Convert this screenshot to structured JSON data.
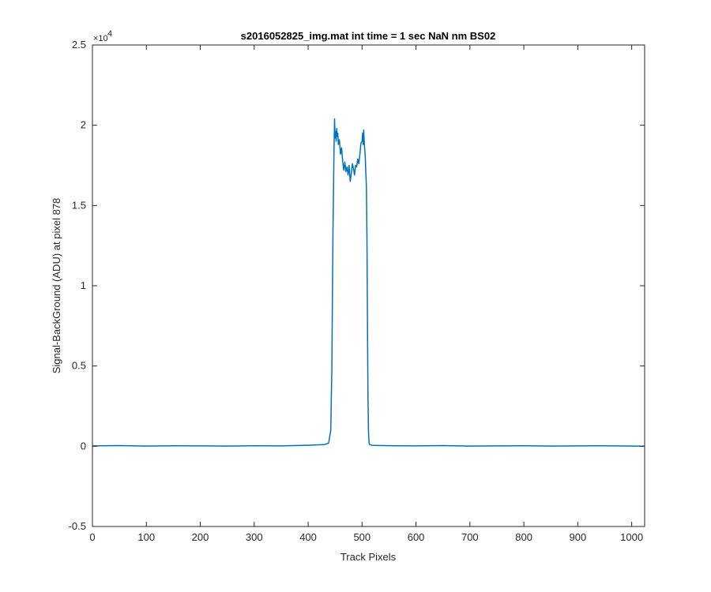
{
  "chart_data": {
    "type": "line",
    "title": "s2016052825_img.mat int time = 1 sec  NaN nm BS02",
    "xlabel": "Track Pixels",
    "ylabel": "Signal-BackGround (ADU) at pixel 878",
    "xlim": [
      0,
      1024
    ],
    "ylim": [
      -5000,
      25000
    ],
    "xticks": [
      0,
      100,
      200,
      300,
      400,
      500,
      600,
      700,
      800,
      900,
      1000
    ],
    "yticks": [
      -0.5,
      0,
      0.5,
      1,
      1.5,
      2,
      2.5
    ],
    "y_tick_labels": [
      "-0.5",
      "0",
      "0.5",
      "1",
      "1.5",
      "2",
      "2.5"
    ],
    "y_exponent": {
      "base": "×10",
      "power": "4"
    },
    "line_color": "#0072BD",
    "grid": false,
    "series": [
      {
        "x": [
          0,
          50,
          100,
          150,
          200,
          250,
          300,
          350,
          400,
          430,
          438,
          442,
          444,
          446,
          448,
          449,
          450,
          451,
          452,
          453,
          454,
          455,
          456,
          458,
          460,
          462,
          464,
          466,
          468,
          470,
          472,
          474,
          476,
          478,
          480,
          482,
          484,
          486,
          488,
          490,
          492,
          494,
          496,
          498,
          500,
          501,
          502,
          503,
          504,
          505,
          506,
          507,
          508,
          509,
          510,
          511,
          512,
          513,
          514,
          516,
          520,
          560,
          600,
          650,
          700,
          750,
          800,
          850,
          900,
          950,
          1000,
          1024
        ],
        "y": [
          20,
          40,
          10,
          30,
          20,
          10,
          30,
          20,
          60,
          100,
          200,
          1000,
          5000,
          13000,
          18500,
          20400,
          19200,
          19600,
          19000,
          19800,
          19300,
          19500,
          18800,
          19100,
          18200,
          18600,
          17800,
          17200,
          17700,
          17100,
          17400,
          16900,
          17500,
          16500,
          17000,
          17600,
          17300,
          16900,
          17500,
          17400,
          17900,
          17600,
          18200,
          18900,
          19000,
          19500,
          18800,
          19700,
          19000,
          18500,
          18000,
          17000,
          16200,
          13000,
          8000,
          3000,
          800,
          200,
          100,
          80,
          50,
          30,
          20,
          40,
          10,
          20,
          30,
          10,
          20,
          30,
          10,
          0
        ]
      }
    ]
  }
}
